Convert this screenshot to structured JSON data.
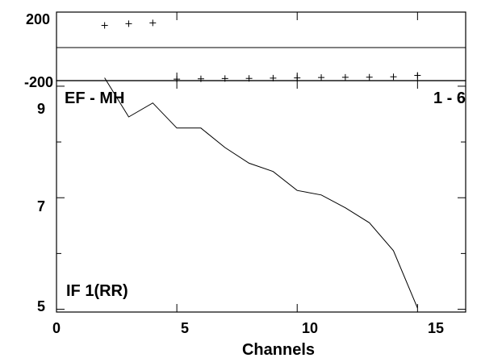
{
  "chart_data": {
    "type": "line",
    "xlabel": "Channels",
    "xlim": [
      0,
      17
    ],
    "x_ticks": [
      "0",
      "5",
      "10",
      "15"
    ],
    "baseline_label": "EF - MH",
    "range_label": "1 - 6",
    "phase_panel": {
      "ylim": [
        -200,
        200
      ],
      "y_ticks": [
        "200",
        "-200"
      ],
      "points": [
        {
          "x": 2,
          "y": 170
        },
        {
          "x": 3,
          "y": 182
        },
        {
          "x": 4,
          "y": 187
        },
        {
          "x": 5,
          "y": -190
        },
        {
          "x": 6,
          "y": -188
        },
        {
          "x": 7,
          "y": -186
        },
        {
          "x": 8,
          "y": -185
        },
        {
          "x": 9,
          "y": -183
        },
        {
          "x": 10,
          "y": -182
        },
        {
          "x": 11,
          "y": -179
        },
        {
          "x": 12,
          "y": -178
        },
        {
          "x": 13,
          "y": -177
        },
        {
          "x": 14,
          "y": -174
        },
        {
          "x": 15,
          "y": -165
        }
      ]
    },
    "amp_panel": {
      "ylim": [
        4.95,
        9.1
      ],
      "y_ticks": [
        "9",
        "7",
        "5"
      ],
      "series_label": "IF 1(RR)",
      "points": [
        {
          "x": 2,
          "y": 9.15
        },
        {
          "x": 3,
          "y": 8.45
        },
        {
          "x": 4,
          "y": 8.7
        },
        {
          "x": 5,
          "y": 8.25
        },
        {
          "x": 6,
          "y": 8.25
        },
        {
          "x": 7,
          "y": 7.9
        },
        {
          "x": 8,
          "y": 7.62
        },
        {
          "x": 9,
          "y": 7.47
        },
        {
          "x": 10,
          "y": 7.13
        },
        {
          "x": 11,
          "y": 7.05
        },
        {
          "x": 12,
          "y": 6.82
        },
        {
          "x": 13,
          "y": 6.55
        },
        {
          "x": 14,
          "y": 6.05
        },
        {
          "x": 15,
          "y": 5.02
        }
      ]
    }
  }
}
